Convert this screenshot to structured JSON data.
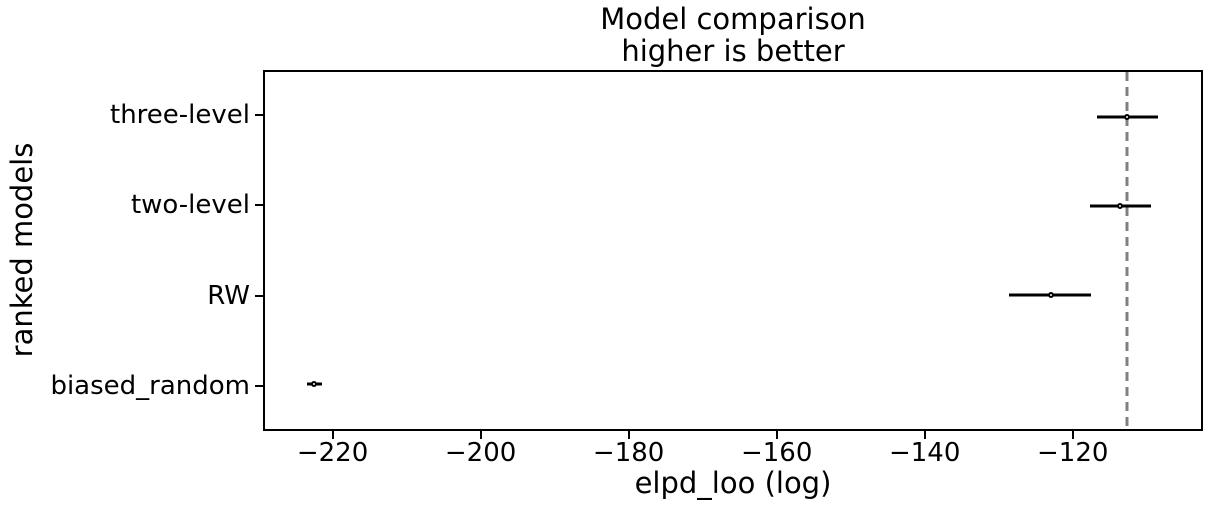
{
  "title": "Model comparison",
  "subtitle": "higher is better",
  "chart_data": {
    "type": "scatter",
    "subtype": "horizontal-errorbar-compare-plot",
    "title": "Model comparison",
    "subtitle": "higher is better",
    "xlabel": "elpd_loo (log)",
    "ylabel": "ranked models",
    "xlim": [
      -229.4,
      -102.4
    ],
    "x_ticks": [
      -220,
      -200,
      -180,
      -160,
      -140,
      -120
    ],
    "grid": false,
    "legend": false,
    "categories": [
      "three-level",
      "two-level",
      "RW",
      "biased_random"
    ],
    "points": [
      {
        "label": "three-level",
        "elpd_loo": -112.4,
        "err_lo": -116.5,
        "err_hi": -108.3
      },
      {
        "label": "two-level",
        "elpd_loo": -113.4,
        "err_lo": -117.4,
        "err_hi": -109.2
      },
      {
        "label": "RW",
        "elpd_loo": -122.8,
        "err_lo": -128.5,
        "err_hi": -117.3
      },
      {
        "label": "biased_random",
        "elpd_loo": -222.7,
        "err_lo": -223.7,
        "err_hi": -221.7
      }
    ],
    "reference_line": {
      "x": -112.4,
      "style": "dashed",
      "color": "#808080"
    },
    "colors": {
      "marker_edge": "#000000",
      "marker_fill": "#ffffff",
      "error_bar": "#000000",
      "spine": "#000000",
      "text": "#000000"
    }
  }
}
